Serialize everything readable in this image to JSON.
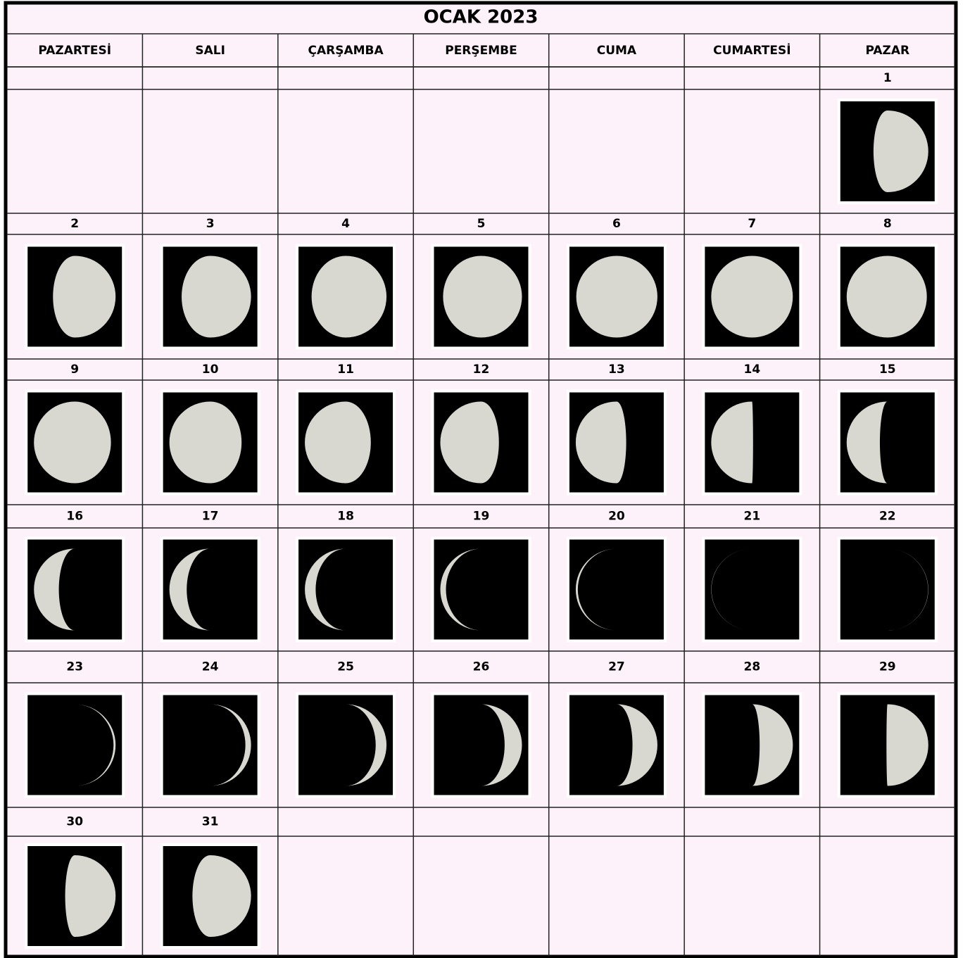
{
  "title": "OCAK 2023",
  "weekdays": [
    "PAZARTESİ",
    "SALI",
    "ÇARŞAMBA",
    "PERŞEMBE",
    "CUMA",
    "CUMARTESİ",
    "PAZAR"
  ],
  "weeks": [
    [
      null,
      null,
      null,
      null,
      null,
      null,
      "1"
    ],
    [
      "2",
      "3",
      "4",
      "5",
      "6",
      "7",
      "8"
    ],
    [
      "9",
      "10",
      "11",
      "12",
      "13",
      "14",
      "15"
    ],
    [
      "16",
      "17",
      "18",
      "19",
      "20",
      "21",
      "22"
    ],
    [
      "23",
      "24",
      "25",
      "26",
      "27",
      "28",
      "29"
    ],
    [
      "30",
      "31",
      null,
      null,
      null,
      null,
      null
    ]
  ]
}
